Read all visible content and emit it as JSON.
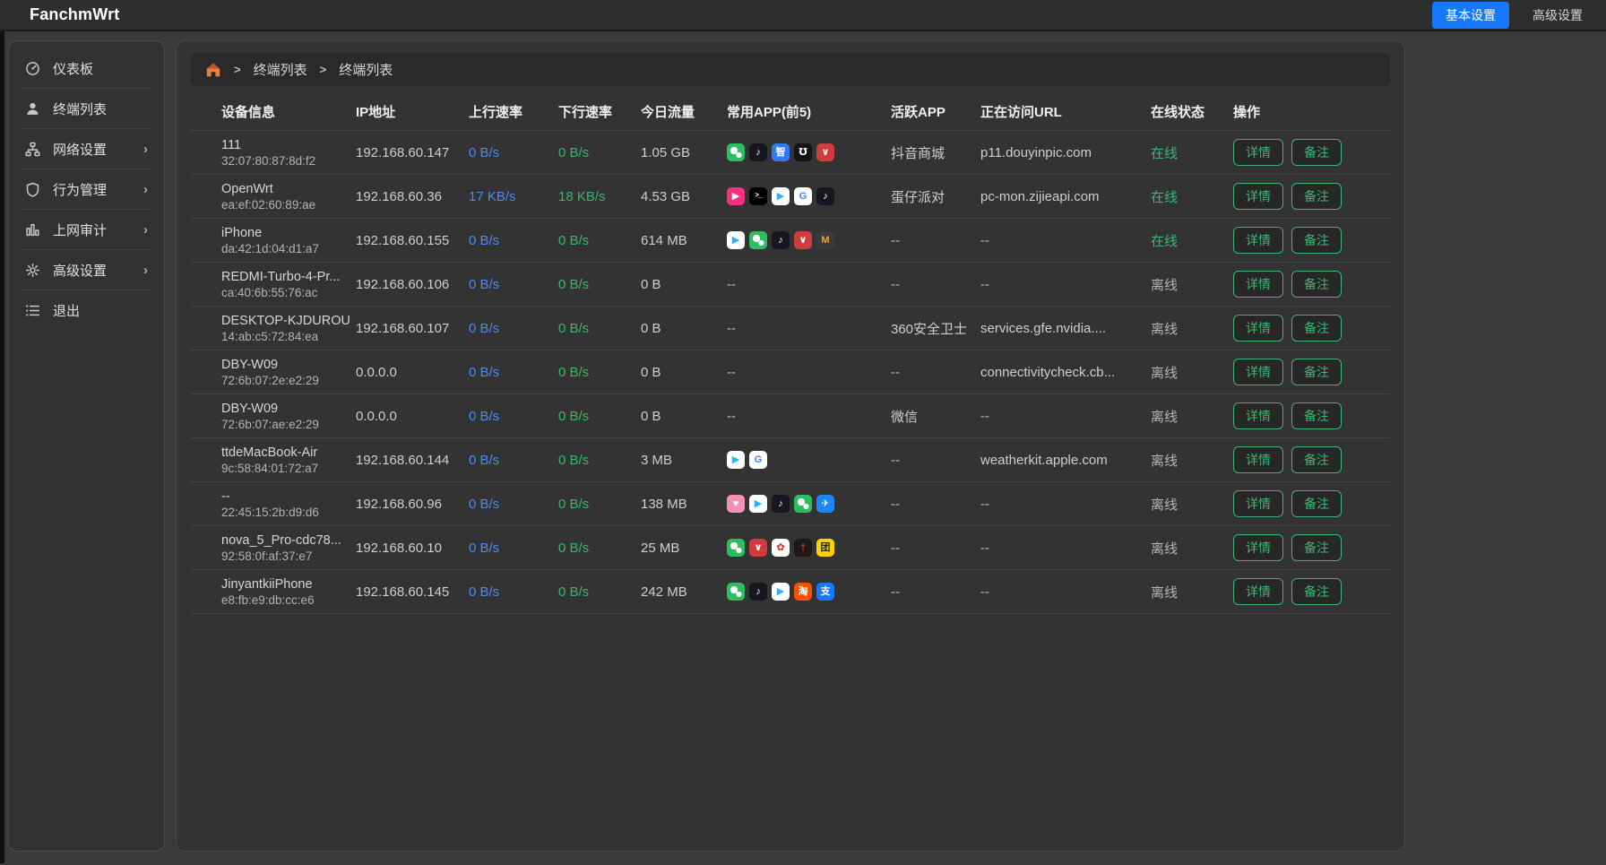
{
  "app": {
    "brand": "FanchmWrt",
    "topnav": {
      "basic": "基本设置",
      "advanced": "高级设置"
    }
  },
  "sidebar": {
    "items": [
      {
        "key": "dashboard",
        "label": "仪表板",
        "icon": "dashboard-icon",
        "chevron": false
      },
      {
        "key": "terminal-list",
        "label": "终端列表",
        "icon": "user-icon",
        "chevron": false
      },
      {
        "key": "network-settings",
        "label": "网络设置",
        "icon": "network-icon",
        "chevron": true
      },
      {
        "key": "behavior-mgmt",
        "label": "行为管理",
        "icon": "shield-icon",
        "chevron": true
      },
      {
        "key": "net-audit",
        "label": "上网审计",
        "icon": "bar-chart-icon",
        "chevron": true
      },
      {
        "key": "advanced-settings",
        "label": "高级设置",
        "icon": "gear-icon",
        "chevron": true
      },
      {
        "key": "logout",
        "label": "退出",
        "icon": "list-icon",
        "chevron": false
      }
    ]
  },
  "breadcrumb": {
    "crumbs": [
      "终端列表",
      "终端列表"
    ]
  },
  "table": {
    "headers": [
      "设备信息",
      "IP地址",
      "上行速率",
      "下行速率",
      "今日流量",
      "常用APP(前5)",
      "活跃APP",
      "正在访问URL",
      "在线状态",
      "操作"
    ],
    "status_online": "在线",
    "status_offline": "离线",
    "empty": "--",
    "actions": {
      "detail": "详情",
      "note": "备注"
    },
    "rows": [
      {
        "name": "111",
        "mac": "32:07:80:87:8d:f2",
        "ip": "192.168.60.147",
        "up": "0 B/s",
        "down": "0 B/s",
        "traffic": "1.05 GB",
        "apps": [
          "wechat",
          "douyin",
          "blue-docs",
          "douyin-shop",
          "huawei-store"
        ],
        "active_app": "抖音商城",
        "url": "p11.douyinpic.com",
        "online": true
      },
      {
        "name": "OpenWrt",
        "mac": "ea:ef:02:60:89:ae",
        "ip": "192.168.60.36",
        "up": "17 KB/s",
        "down": "18 KB/s",
        "traffic": "4.53 GB",
        "apps": [
          "pink-game",
          "ssh",
          "tencent-video",
          "google",
          "douyin"
        ],
        "active_app": "蛋仔派对",
        "url": "pc-mon.zijieapi.com",
        "online": true
      },
      {
        "name": "iPhone",
        "mac": "da:42:1d:04:d1:a7",
        "ip": "192.168.60.155",
        "up": "0 B/s",
        "down": "0 B/s",
        "traffic": "614 MB",
        "apps": [
          "tencent-video",
          "wechat",
          "douyin",
          "huawei-store",
          "gold-butterfly"
        ],
        "active_app": "--",
        "url": "--",
        "online": true
      },
      {
        "name": "REDMI-Turbo-4-Pr...",
        "mac": "ca:40:6b:55:76:ac",
        "ip": "192.168.60.106",
        "up": "0 B/s",
        "down": "0 B/s",
        "traffic": "0 B",
        "apps": [],
        "active_app": "--",
        "url": "--",
        "online": false
      },
      {
        "name": "DESKTOP-KJDUROU",
        "mac": "14:ab:c5:72:84:ea",
        "ip": "192.168.60.107",
        "up": "0 B/s",
        "down": "0 B/s",
        "traffic": "0 B",
        "apps": [],
        "active_app": "360安全卫士",
        "url": "services.gfe.nvidia....",
        "online": false
      },
      {
        "name": "DBY-W09",
        "mac": "72:6b:07:2e:e2:29",
        "ip": "0.0.0.0",
        "up": "0 B/s",
        "down": "0 B/s",
        "traffic": "0 B",
        "apps": [],
        "active_app": "--",
        "url": "connectivitycheck.cb...",
        "online": false
      },
      {
        "name": "DBY-W09",
        "mac": "72:6b:07:ae:e2:29",
        "ip": "0.0.0.0",
        "up": "0 B/s",
        "down": "0 B/s",
        "traffic": "0 B",
        "apps": [],
        "active_app": "微信",
        "url": "--",
        "online": false
      },
      {
        "name": "ttdeMacBook-Air",
        "mac": "9c:58:84:01:72:a7",
        "ip": "192.168.60.144",
        "up": "0 B/s",
        "down": "0 B/s",
        "traffic": "3 MB",
        "apps": [
          "tencent-video",
          "google"
        ],
        "active_app": "--",
        "url": "weatherkit.apple.com",
        "online": false
      },
      {
        "name": "--",
        "mac": "22:45:15:2b:d9:d6",
        "ip": "192.168.60.96",
        "up": "0 B/s",
        "down": "0 B/s",
        "traffic": "138 MB",
        "apps": [
          "pink-app",
          "tencent-video",
          "douyin",
          "wechat",
          "blue-bird"
        ],
        "active_app": "--",
        "url": "--",
        "online": false
      },
      {
        "name": "nova_5_Pro-cdc78...",
        "mac": "92:58:0f:af:37:e7",
        "ip": "192.168.60.10",
        "up": "0 B/s",
        "down": "0 B/s",
        "traffic": "25 MB",
        "apps": [
          "wechat",
          "huawei-store",
          "huawei-logo",
          "dark-game",
          "meituan"
        ],
        "active_app": "--",
        "url": "--",
        "online": false
      },
      {
        "name": "JinyantkiiPhone",
        "mac": "e8:fb:e9:db:cc:e6",
        "ip": "192.168.60.145",
        "up": "0 B/s",
        "down": "0 B/s",
        "traffic": "242 MB",
        "apps": [
          "wechat",
          "douyin",
          "tencent-video",
          "taobao",
          "alipay"
        ],
        "active_app": "--",
        "url": "--",
        "online": false
      }
    ]
  },
  "app_icons": {
    "wechat": {
      "label": "微信",
      "bg": "#2dbe60",
      "fg": "#ffffff",
      "glyph": ""
    },
    "douyin": {
      "label": "抖音",
      "bg": "#17171f",
      "fg": "#ffffff",
      "glyph": "♪"
    },
    "blue-docs": {
      "label": "智学",
      "bg": "#2f7bf5",
      "fg": "#ffffff",
      "glyph": "智"
    },
    "douyin-shop": {
      "label": "抖音商城",
      "bg": "#141414",
      "fg": "#ffffff",
      "glyph": "℧"
    },
    "huawei-store": {
      "label": "华为应用市场",
      "bg": "#cf3c3c",
      "fg": "#ffffff",
      "glyph": "∨"
    },
    "pink-game": {
      "label": "蛋仔派对",
      "bg": "#f5317f",
      "fg": "#ffffff",
      "glyph": "▶"
    },
    "ssh": {
      "label": "SSH",
      "bg": "#000000",
      "fg": "#ffffff",
      "glyph": ">_"
    },
    "tencent-video": {
      "label": "腾讯视频",
      "bg": "#ffffff",
      "fg": "#2bb3ff",
      "glyph": "▶"
    },
    "google": {
      "label": "Google",
      "bg": "#ffffff",
      "fg": "#4285f4",
      "glyph": "G"
    },
    "gold-butterfly": {
      "label": "金蝶",
      "bg": "#3a3a3a",
      "fg": "#f2a33c",
      "glyph": "M"
    },
    "pink-app": {
      "label": "粉色应用",
      "bg": "#f291b5",
      "fg": "#ffffff",
      "glyph": "♥"
    },
    "blue-bird": {
      "label": "蓝色应用",
      "bg": "#1d86f5",
      "fg": "#ffffff",
      "glyph": "✈"
    },
    "huawei-logo": {
      "label": "华为",
      "bg": "#ffffff",
      "fg": "#e2231a",
      "glyph": "✿"
    },
    "dark-game": {
      "label": "游戏",
      "bg": "#1f1a1a",
      "fg": "#c0392b",
      "glyph": "†"
    },
    "meituan": {
      "label": "美团",
      "bg": "#ffd100",
      "fg": "#222222",
      "glyph": "团"
    },
    "taobao": {
      "label": "淘宝",
      "bg": "#ff5000",
      "fg": "#ffffff",
      "glyph": "淘"
    },
    "alipay": {
      "label": "支付宝",
      "bg": "#1677ff",
      "fg": "#ffffff",
      "glyph": "支"
    }
  },
  "colors": {
    "accent": "#1677ff",
    "upload": "#4b8bf5",
    "download": "#35b969",
    "online": "#3eb575",
    "offline": "#b5b5b5",
    "button_border": "#3eb575"
  }
}
